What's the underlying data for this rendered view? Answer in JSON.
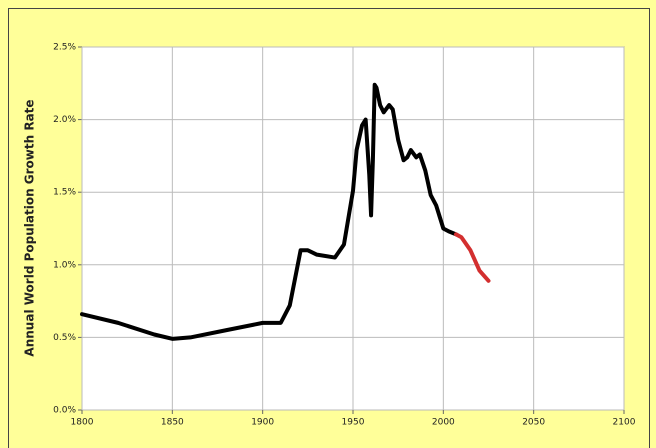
{
  "chart_data": {
    "type": "line",
    "ylabel": "Annual World Population Growth Rate",
    "x": [
      1800,
      1820,
      1840,
      1850,
      1860,
      1880,
      1900,
      1910,
      1915,
      1921,
      1925,
      1930,
      1940,
      1945,
      1950,
      1952,
      1955,
      1957,
      1959,
      1960,
      1961,
      1962,
      1963,
      1965,
      1967,
      1970,
      1972,
      1975,
      1978,
      1980,
      1982,
      1985,
      1987,
      1990,
      1993,
      1996,
      2000,
      2003,
      2007,
      2010,
      2015,
      2020,
      2025
    ],
    "series": [
      {
        "color": "#000000",
        "values": [
          0.66,
          0.6,
          0.52,
          0.49,
          0.5,
          0.55,
          0.6,
          0.6,
          0.72,
          1.1,
          1.1,
          1.07,
          1.05,
          1.14,
          1.51,
          1.79,
          1.96,
          2.0,
          1.62,
          1.34,
          1.72,
          2.24,
          2.22,
          2.1,
          2.05,
          2.1,
          2.07,
          1.86,
          1.72,
          1.74,
          1.79,
          1.74,
          1.76,
          1.65,
          1.48,
          1.41,
          1.25,
          1.23,
          1.21,
          null,
          null,
          null,
          null
        ]
      },
      {
        "color": "#d32f2f",
        "values": [
          null,
          null,
          null,
          null,
          null,
          null,
          null,
          null,
          null,
          null,
          null,
          null,
          null,
          null,
          null,
          null,
          null,
          null,
          null,
          null,
          null,
          null,
          null,
          null,
          null,
          null,
          null,
          null,
          null,
          null,
          null,
          null,
          null,
          null,
          null,
          null,
          null,
          null,
          1.21,
          1.19,
          1.1,
          0.96,
          0.89
        ]
      }
    ],
    "xlim": [
      1800,
      2100
    ],
    "xticks": [
      1800,
      1850,
      1900,
      1950,
      2000,
      2050,
      2100
    ],
    "ylim": [
      0,
      2.5
    ],
    "yticks": [
      {
        "value": 0,
        "label": "0.0%"
      },
      {
        "value": 0.5,
        "label": "0.5%"
      },
      {
        "value": 1,
        "label": "1.0%"
      },
      {
        "value": 1.5,
        "label": "1.5%"
      },
      {
        "value": 2,
        "label": "2.0%"
      },
      {
        "value": 2.5,
        "label": "2.5%"
      }
    ],
    "grid": true
  }
}
